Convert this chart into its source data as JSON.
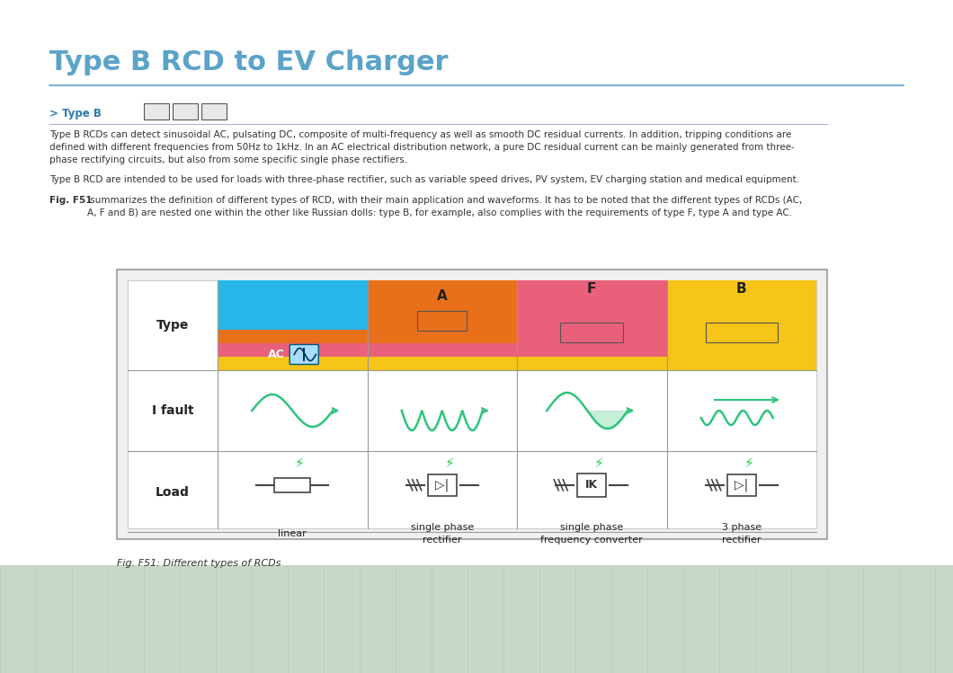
{
  "title": "Type B RCD to EV Charger",
  "title_color": "#5ba3c9",
  "title_fontsize": 22,
  "title_bold": true,
  "separator_color": "#5ba3c9",
  "bg_color": "#ffffff",
  "section_label_color": "#2d7ab0",
  "type_b_text": "> Type B",
  "para1": "Type B RCDs can detect sinusoidal AC, pulsating DC, composite of multi-frequency as well as smooth DC residual currents. In addition, tripping conditions are\ndefined with different frequencies from 50Hz to 1kHz. In an AC electrical distribution network, a pure DC residual current can be mainly generated from three-\nphase rectifying circuits, but also from some specific single phase rectifiers.",
  "para2": "Type B RCD are intended to be used for loads with three-phase rectifier, such as variable speed drives, PV system, EV charging station and medical equipment.",
  "para3_bold": "Fig. F51",
  "para3_rest": " summarizes the definition of different types of RCD, with their main application and waveforms. It has to be noted that the different types of RCDs (AC,\nA, F and B) are nested one within the other like Russian dolls: type B, for example, also complies with the requirements of type F, type A and type AC.",
  "fig_caption": "Fig. F51: Different types of RCDs",
  "outer_box_color": "#c8c8c8",
  "inner_box_bg": "#ffffff",
  "yellow_color": "#f5c518",
  "pink_color": "#e8607a",
  "orange_color": "#e8701a",
  "cyan_color": "#29b6e8",
  "text_dark": "#2a2a2a",
  "grid_line_color": "#999999",
  "wave_color": "#2ec47a",
  "wave_fill_color": "#b0e8c8"
}
